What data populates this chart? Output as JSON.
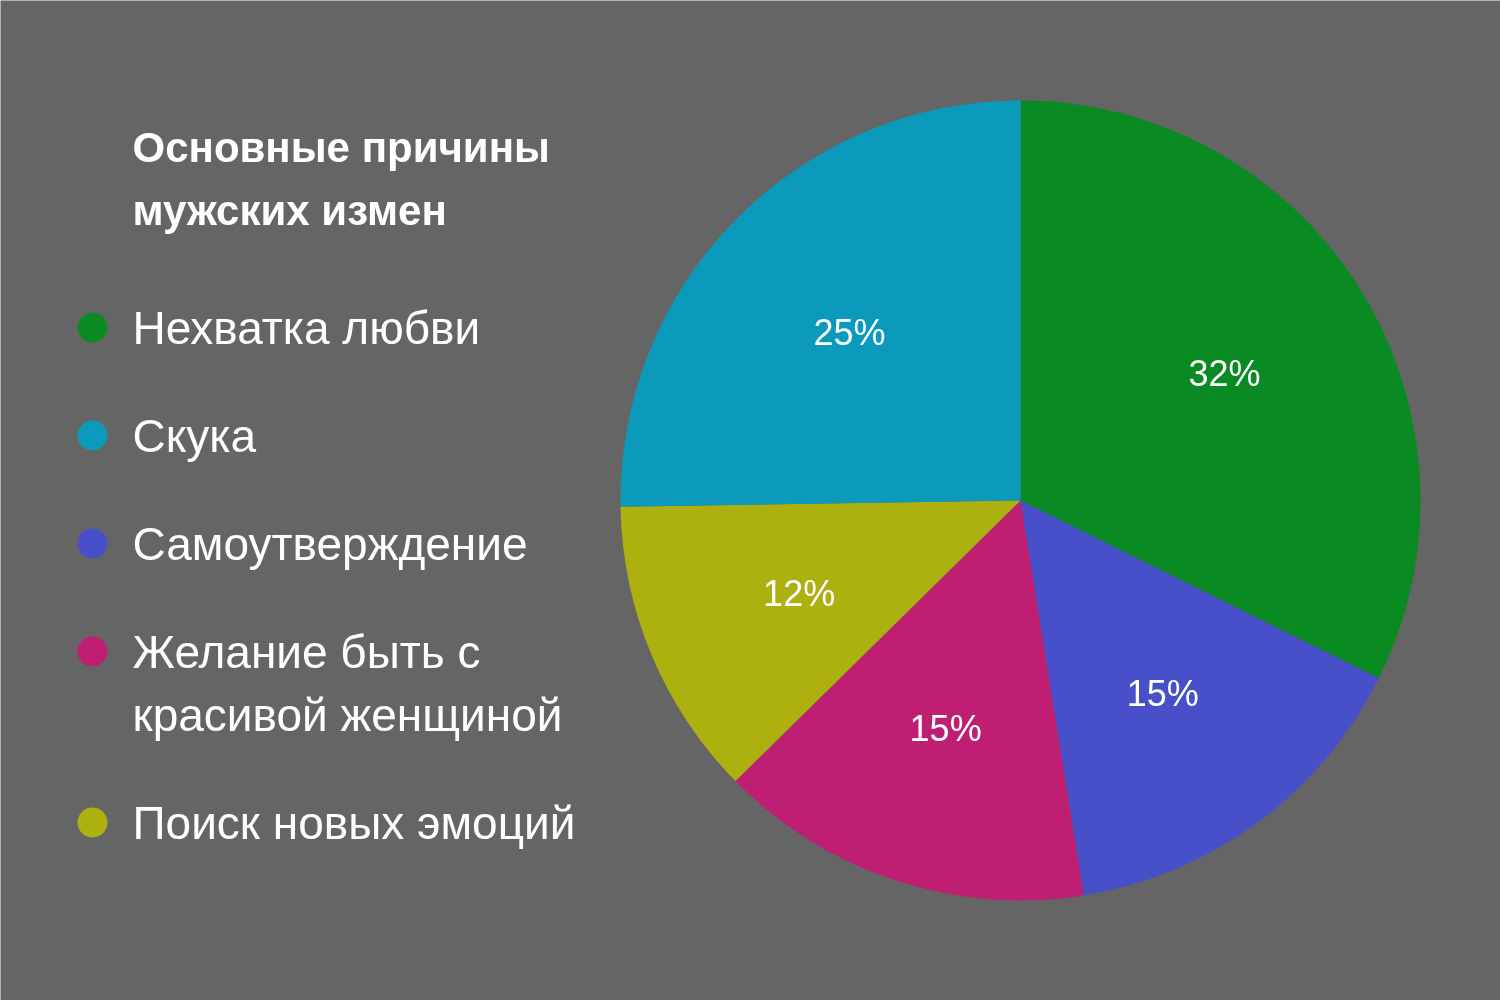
{
  "chart_data": {
    "type": "pie",
    "title": "Основные причины мужских измен",
    "categories": [
      "Нехватка любви",
      "Самоутверждение",
      "Желание быть с красивой женщиной",
      "Поиск новых эмоций",
      "Скука"
    ],
    "values": [
      32,
      15,
      15,
      12,
      25
    ],
    "value_labels": [
      "32%",
      "15%",
      "15%",
      "12%",
      "25%"
    ],
    "colors": [
      "#0a8a22",
      "#4750c9",
      "#bf1f73",
      "#adb10f",
      "#0b9abb"
    ],
    "legend": "left"
  }
}
